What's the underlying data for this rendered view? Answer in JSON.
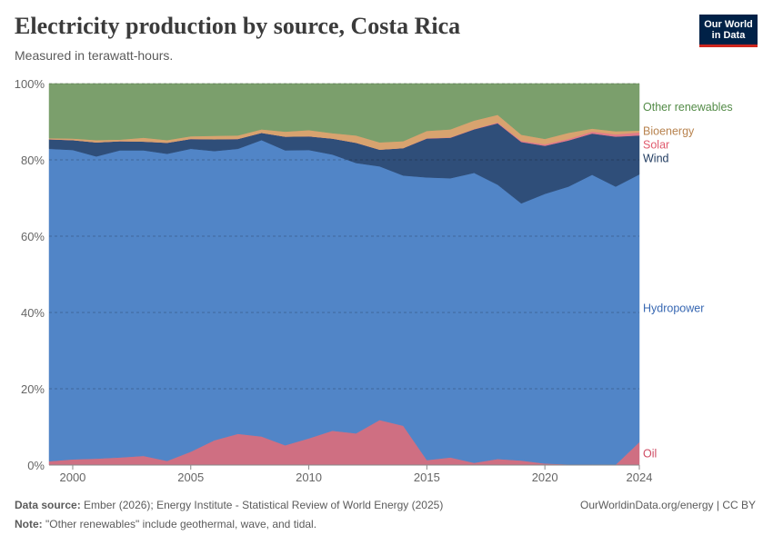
{
  "header": {
    "title": "Electricity production by source, Costa Rica",
    "subtitle": "Measured in terawatt-hours."
  },
  "logo": {
    "line1": "Our World",
    "line2": "in Data"
  },
  "footer": {
    "source_label": "Data source:",
    "source_text": "Ember (2026); Energy Institute - Statistical Review of World Energy (2025)",
    "note_label": "Note:",
    "note_text": "\"Other renewables\" include geothermal, wave, and tidal.",
    "credit": "OurWorldinData.org/energy | CC BY"
  },
  "chart_data": {
    "type": "area",
    "stacked": true,
    "normalized_percent": true,
    "x_label_years": [
      "2000",
      "2005",
      "2010",
      "2015",
      "2020",
      "2024"
    ],
    "y_tick_labels": [
      "0%",
      "20%",
      "40%",
      "60%",
      "80%",
      "100%"
    ],
    "ylim": [
      0,
      100
    ],
    "grid": "horizontal dashed",
    "legend": "right-side labels",
    "x": [
      1999,
      2000,
      2001,
      2002,
      2003,
      2004,
      2005,
      2006,
      2007,
      2008,
      2009,
      2010,
      2011,
      2012,
      2013,
      2014,
      2015,
      2016,
      2017,
      2018,
      2019,
      2020,
      2021,
      2022,
      2023,
      2024
    ],
    "series": [
      {
        "name": "Oil",
        "color": "#cf6f82",
        "label_color": "#cf4b63",
        "values": [
          1.0,
          1.5,
          1.7,
          2.0,
          2.4,
          1.1,
          3.5,
          6.5,
          8.2,
          7.5,
          5.2,
          7.0,
          9.0,
          8.3,
          11.8,
          10.3,
          1.3,
          2.0,
          0.6,
          1.6,
          1.2,
          0.4,
          0.2,
          0.2,
          0.1,
          6.0
        ]
      },
      {
        "name": "Hydropower",
        "color": "#5185c7",
        "label_color": "#3767b2",
        "values": [
          81.9,
          81.1,
          79.2,
          80.5,
          80.1,
          80.5,
          79.4,
          75.8,
          74.7,
          77.7,
          77.3,
          75.6,
          72.4,
          70.9,
          66.5,
          65.6,
          74.1,
          73.2,
          76.0,
          71.9,
          67.4,
          70.7,
          72.8,
          75.9,
          72.9,
          70.2
        ]
      },
      {
        "name": "Wind",
        "color": "#2f4e79",
        "label_color": "#1f3a5f",
        "values": [
          2.5,
          2.6,
          3.7,
          2.4,
          2.3,
          2.9,
          2.6,
          3.1,
          2.6,
          1.9,
          3.6,
          3.6,
          4.2,
          5.3,
          4.4,
          7.2,
          10.2,
          10.6,
          11.4,
          16.1,
          16.1,
          12.6,
          12.1,
          10.8,
          13.1,
          10.2
        ]
      },
      {
        "name": "Solar",
        "color": "#e27b89",
        "label_color": "#e05a6d",
        "values": [
          0,
          0,
          0,
          0,
          0,
          0,
          0,
          0,
          0,
          0,
          0,
          0,
          0,
          0,
          0,
          0,
          0.1,
          0.1,
          0.1,
          0.2,
          0.3,
          0.4,
          0.4,
          0.5,
          0.6,
          0.8
        ]
      },
      {
        "name": "Bioenergy",
        "color": "#d8a36f",
        "label_color": "#b8834f",
        "values": [
          0.3,
          0.4,
          0.6,
          0.4,
          1.0,
          0.7,
          0.7,
          0.9,
          0.9,
          0.9,
          1.3,
          1.6,
          1.4,
          1.9,
          1.9,
          1.8,
          1.9,
          2.1,
          2.2,
          2.0,
          1.6,
          1.4,
          1.6,
          0.8,
          0.8,
          0.5
        ]
      },
      {
        "name": "Other renewables",
        "color": "#7b9f6c",
        "label_color": "#538b47",
        "values": [
          14.3,
          14.4,
          14.8,
          14.7,
          14.2,
          14.8,
          13.8,
          13.7,
          13.6,
          12.0,
          12.6,
          12.2,
          13.0,
          13.6,
          15.4,
          15.1,
          12.4,
          12.0,
          9.7,
          8.2,
          13.4,
          14.5,
          12.9,
          11.8,
          12.5,
          12.3
        ]
      }
    ]
  }
}
